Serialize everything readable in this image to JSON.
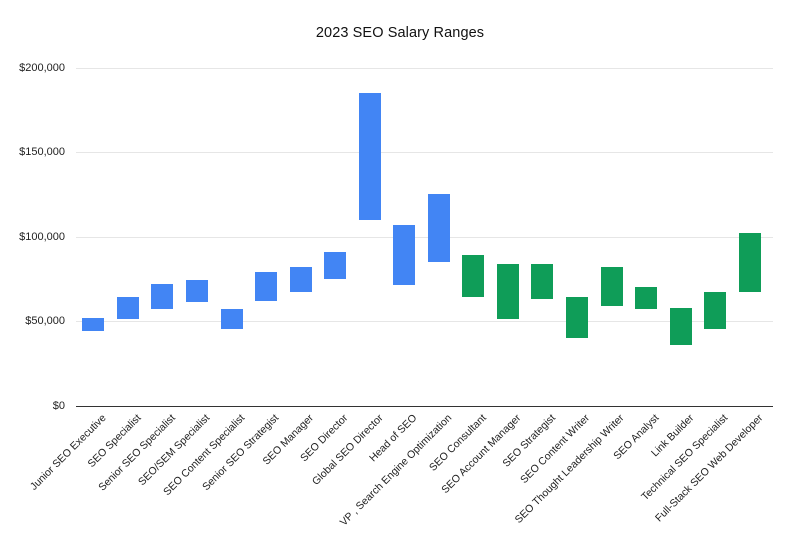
{
  "chart_data": {
    "type": "bar",
    "variant": "floating_range_columns",
    "title": "2023 SEO Salary Ranges",
    "xlabel": "",
    "ylabel": "",
    "legend_position": "none",
    "grid": true,
    "ylim": [
      0,
      200000
    ],
    "ytick_step": 50000,
    "yticks": [
      {
        "value": 0,
        "label": "$0"
      },
      {
        "value": 50000,
        "label": "$50,000"
      },
      {
        "value": 100000,
        "label": "$100,000"
      },
      {
        "value": 150000,
        "label": "$150,000"
      },
      {
        "value": 200000,
        "label": "$200,000"
      }
    ],
    "palette": {
      "blue": "#4285f4",
      "green": "#0f9d58"
    },
    "bars": [
      {
        "label": "Junior SEO Executive",
        "min": 44000,
        "max": 52000,
        "color": "#4285f4"
      },
      {
        "label": "SEO Specialist",
        "min": 51000,
        "max": 64000,
        "color": "#4285f4"
      },
      {
        "label": "Senior SEO Specialist",
        "min": 57000,
        "max": 72000,
        "color": "#4285f4"
      },
      {
        "label": "SEO/SEM Specialist",
        "min": 61000,
        "max": 74000,
        "color": "#4285f4"
      },
      {
        "label": "SEO Content Specialist",
        "min": 45000,
        "max": 57000,
        "color": "#4285f4"
      },
      {
        "label": "Senior SEO Strategist",
        "min": 62000,
        "max": 79000,
        "color": "#4285f4"
      },
      {
        "label": "SEO Manager",
        "min": 67000,
        "max": 82000,
        "color": "#4285f4"
      },
      {
        "label": "SEO Director",
        "min": 75000,
        "max": 91000,
        "color": "#4285f4"
      },
      {
        "label": "Global SEO Director",
        "min": 110000,
        "max": 185000,
        "color": "#4285f4"
      },
      {
        "label": "Head of SEO",
        "min": 71000,
        "max": 107000,
        "color": "#4285f4"
      },
      {
        "label": "VP , Search Engine Optimization",
        "min": 85000,
        "max": 125000,
        "color": "#4285f4"
      },
      {
        "label": "SEO Consultant",
        "min": 64000,
        "max": 89000,
        "color": "#0f9d58"
      },
      {
        "label": "SEO Account Manager",
        "min": 51000,
        "max": 84000,
        "color": "#0f9d58"
      },
      {
        "label": "SEO Strategist",
        "min": 63000,
        "max": 84000,
        "color": "#0f9d58"
      },
      {
        "label": "SEO Content Writer",
        "min": 40000,
        "max": 64000,
        "color": "#0f9d58"
      },
      {
        "label": "SEO Thought Leadership Writer",
        "min": 59000,
        "max": 82000,
        "color": "#0f9d58"
      },
      {
        "label": "SEO Analyst",
        "min": 57000,
        "max": 70000,
        "color": "#0f9d58"
      },
      {
        "label": "Link Builder",
        "min": 36000,
        "max": 58000,
        "color": "#0f9d58"
      },
      {
        "label": "Technical SEO Specialist",
        "min": 45000,
        "max": 67000,
        "color": "#0f9d58"
      },
      {
        "label": "Full-Stack SEO Web Developer",
        "min": 67000,
        "max": 102000,
        "color": "#0f9d58"
      }
    ]
  }
}
